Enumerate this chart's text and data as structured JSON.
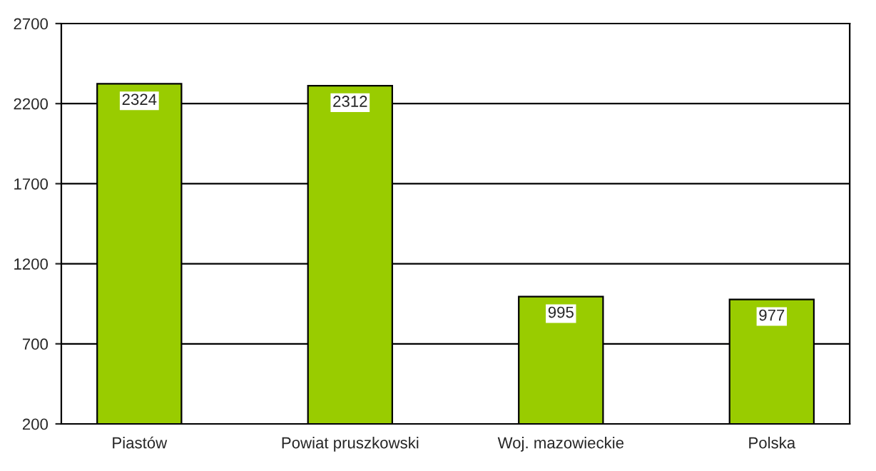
{
  "chart_data": {
    "type": "bar",
    "categories": [
      "Piastów",
      "Powiat pruszkowski",
      "Woj. mazowieckie",
      "Polska"
    ],
    "values": [
      2324,
      2312,
      995,
      977
    ],
    "color": "#99cc00",
    "ylim": [
      200,
      2700
    ],
    "yticks": [
      200,
      700,
      1200,
      1700,
      2200,
      2700
    ],
    "grid": "y",
    "data_labels": true
  }
}
